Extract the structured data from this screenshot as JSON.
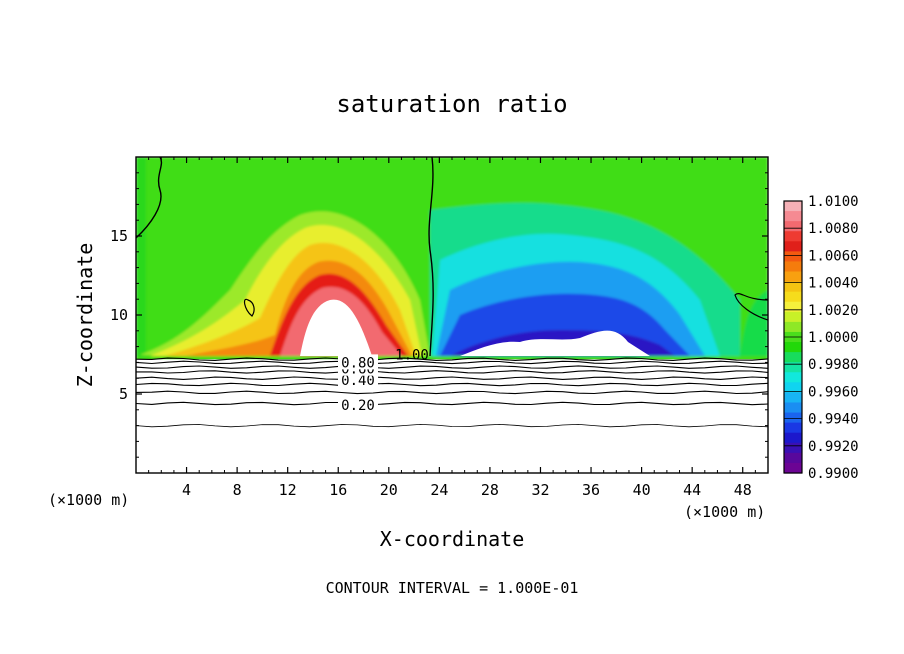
{
  "chart_data": {
    "type": "heatmap",
    "title": "saturation ratio",
    "xlabel": "X-coordinate",
    "ylabel": "Z-coordinate",
    "x_unit_label": "(×1000 m)",
    "y_unit_label": "(×1000 m)",
    "footer": "CONTOUR INTERVAL = 1.000E-01",
    "xlim": [
      0,
      50
    ],
    "ylim": [
      0,
      20
    ],
    "x_ticks": [
      4,
      8,
      12,
      16,
      20,
      24,
      28,
      32,
      36,
      40,
      44,
      48
    ],
    "y_ticks": [
      5,
      10,
      15
    ],
    "colorbar": {
      "min": 0.99,
      "max": 1.01,
      "labels": [
        "1.0100",
        "1.0080",
        "1.0060",
        "1.0040",
        "1.0020",
        "1.0000",
        "0.9980",
        "0.9960",
        "0.9940",
        "0.9920",
        "0.9900"
      ],
      "colors": [
        "#f5b0b6",
        "#f58a92",
        "#f26a70",
        "#ee3b32",
        "#e0201a",
        "#f45a10",
        "#f57c0c",
        "#f8a010",
        "#f4c412",
        "#f6dc1c",
        "#f5f03c",
        "#c8f028",
        "#8ee826",
        "#4ade1c",
        "#22d80a",
        "#18dc5c",
        "#14e4a4",
        "#12e8dc",
        "#10d4f0",
        "#18b4f4",
        "#1a8ef2",
        "#1a64ee",
        "#1a38e4",
        "#1c18cc",
        "#3a10b4",
        "#58089c",
        "#6c0494"
      ]
    },
    "cloud_base_km": 7.2,
    "contour_labels": [
      {
        "text": "0.20",
        "z": 4.3
      },
      {
        "text": "0.40",
        "z": 5.9
      },
      {
        "text": "0.60",
        "z": 6.6
      },
      {
        "text": "0.80",
        "z": 7.0
      },
      {
        "text": "1.00",
        "z": 7.5
      }
    ],
    "contour_levels_z": [
      3.0,
      4.4,
      5.1,
      5.6,
      6.0,
      6.4,
      6.7,
      7.0,
      7.2
    ]
  }
}
